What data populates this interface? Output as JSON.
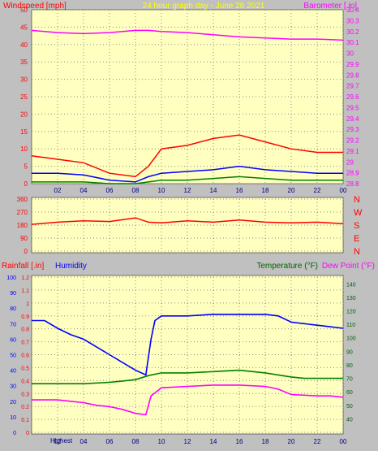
{
  "chart_data": [
    {
      "type": "line",
      "title": "24 hour graph day - June 28 2021",
      "ylabel": "Windspeed [mph]",
      "y2label": "Barometer [.in]",
      "x_ticks": [
        "02",
        "04",
        "06",
        "08",
        "10",
        "12",
        "14",
        "16",
        "18",
        "20",
        "22",
        "00"
      ],
      "ylim": [
        0,
        50
      ],
      "y_ticks": [
        0,
        5,
        10,
        15,
        20,
        25,
        30,
        35,
        40,
        45,
        50
      ],
      "y2lim": [
        28.8,
        30.4
      ],
      "y2_ticks": [
        "28.8",
        "28.9",
        "29",
        "29.1",
        "29.2",
        "29.3",
        "29.4",
        "29.5",
        "29.6",
        "29.7",
        "29.8",
        "29.9",
        "30",
        "30.1",
        "30.2",
        "30.3",
        "30.4"
      ],
      "series": [
        {
          "axis": "right",
          "color": "#ff00ff",
          "x": [
            0,
            2,
            4,
            6,
            8,
            9,
            10,
            12,
            14,
            16,
            18,
            20,
            22,
            24
          ],
          "values": [
            30.21,
            30.19,
            30.18,
            30.19,
            30.21,
            30.21,
            30.2,
            30.19,
            30.17,
            30.15,
            30.14,
            30.13,
            30.13,
            30.12
          ]
        },
        {
          "axis": "left",
          "color": "#ff0000",
          "x": [
            0,
            2,
            4,
            6,
            8,
            9,
            10,
            12,
            14,
            16,
            18,
            20,
            22,
            24
          ],
          "values": [
            8,
            7,
            6,
            3,
            2,
            5,
            10,
            11,
            13,
            14,
            12,
            10,
            9,
            9
          ]
        },
        {
          "axis": "left",
          "color": "#0000ff",
          "x": [
            0,
            2,
            4,
            6,
            8,
            9,
            10,
            12,
            14,
            16,
            18,
            20,
            22,
            24
          ],
          "values": [
            3,
            3,
            2.5,
            1,
            0.5,
            2,
            3,
            3.5,
            4,
            5,
            4,
            3.5,
            3,
            3
          ]
        },
        {
          "axis": "left",
          "color": "#008000",
          "x": [
            0,
            2,
            4,
            6,
            8,
            9,
            10,
            12,
            14,
            16,
            18,
            20,
            22,
            24
          ],
          "values": [
            0.5,
            0.5,
            0.5,
            0,
            0,
            0.5,
            1,
            1,
            1.5,
            2,
            1.5,
            1,
            1,
            1
          ]
        }
      ]
    },
    {
      "type": "line",
      "x_ticks": [
        "02",
        "04",
        "06",
        "08",
        "10",
        "12",
        "14",
        "16",
        "18",
        "20",
        "22",
        "00"
      ],
      "ylim": [
        0,
        360
      ],
      "y_ticks": [
        0,
        90,
        180,
        270,
        360
      ],
      "y2_labels": [
        "N",
        "W",
        "S",
        "E",
        "N"
      ],
      "series": [
        {
          "color": "#ff0000",
          "x": [
            0,
            2,
            4,
            6,
            8,
            9,
            10,
            12,
            14,
            16,
            18,
            20,
            22,
            24
          ],
          "values": [
            185,
            200,
            210,
            205,
            230,
            200,
            195,
            210,
            200,
            215,
            200,
            195,
            200,
            190
          ]
        }
      ]
    },
    {
      "type": "line",
      "ylabel": "Rainfall [.in]",
      "y_extra_label": "Humidity",
      "y2label_a": "Temperature (°F)",
      "y2label_b": "Dew Point (°F)",
      "x_ticks": [
        "02",
        "04",
        "06",
        "08",
        "10",
        "12",
        "14",
        "16",
        "18",
        "20",
        "22",
        "00"
      ],
      "highest_label": "Highest",
      "rain_ylim": [
        0,
        1.2
      ],
      "rain_ticks": [
        "0",
        "0.1",
        "0.2",
        "0.3",
        "0.4",
        "0.5",
        "0.6",
        "0.7",
        "0.8",
        "0.9",
        "1",
        "1.1",
        "1.2"
      ],
      "hum_ylim": [
        0,
        100
      ],
      "hum_ticks": [
        0,
        10,
        20,
        30,
        40,
        50,
        60,
        70,
        80,
        90,
        100
      ],
      "temp_ylim": [
        30,
        145
      ],
      "temp_ticks": [
        40,
        50,
        60,
        70,
        80,
        90,
        100,
        110,
        120,
        130,
        140
      ],
      "series": [
        {
          "name": "Humidity",
          "axis": "humidity",
          "color": "#0000ff",
          "x": [
            0,
            1,
            2,
            3,
            4,
            5,
            6,
            7,
            8,
            8.8,
            9.2,
            9.5,
            10,
            11,
            12,
            14,
            16,
            18,
            19,
            20,
            21,
            22,
            23,
            24
          ],
          "values": [
            72,
            72,
            67,
            63,
            60,
            55,
            50,
            45,
            40,
            37,
            60,
            72,
            75,
            75,
            75,
            76,
            76,
            76,
            75,
            71,
            70,
            69,
            68,
            67
          ]
        },
        {
          "name": "Temperature (°F)",
          "axis": "temp",
          "color": "#008000",
          "x": [
            0,
            2,
            4,
            6,
            7,
            8,
            9,
            10,
            12,
            14,
            16,
            18,
            20,
            21,
            22,
            24
          ],
          "values": [
            66,
            66,
            66,
            67,
            68,
            69,
            72,
            74,
            74,
            75,
            76,
            74,
            71,
            70,
            70,
            70
          ]
        },
        {
          "name": "Dew Point (°F)",
          "axis": "temp",
          "color": "#ff00ff",
          "x": [
            0,
            2,
            3,
            4,
            5,
            6,
            7,
            8,
            8.8,
            9.2,
            10,
            12,
            14,
            16,
            18,
            19,
            20,
            22,
            23,
            24
          ],
          "values": [
            54,
            54,
            53,
            52,
            50,
            49,
            47,
            44,
            43,
            57,
            63,
            64,
            65,
            65,
            64,
            62,
            58,
            57,
            57,
            56
          ]
        }
      ]
    }
  ]
}
